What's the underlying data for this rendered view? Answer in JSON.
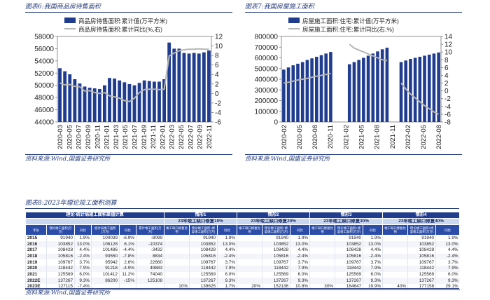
{
  "fig6": {
    "title": "图表6:我国商品房待售面积",
    "source": "资料来源:Wind,国盛证券研究所"
  },
  "fig7": {
    "title": "图表7:我国房屋施工面积",
    "source": "资料来源:Wind,国盛证券研究所"
  },
  "fig8": {
    "title": "图表8:2023年理论竣工面积测算",
    "source": "资料来源:Wind,国盛证券研究所",
    "group_main": "理论-统计局竣工面积差值计算",
    "scenarios": [
      "情形1",
      "情形2",
      "情形3",
      "情形4"
    ],
    "scenario_subs": [
      "23年竣工缺口修复10%",
      "23年竣工缺口修复20%",
      "23年竣工缺口修复30%",
      "23年竣工缺口修复40%"
    ],
    "col_headers": [
      "年份",
      "理论竣工面积(万方)",
      "同比",
      "统计局竣工面积(万方)",
      "同比",
      "累计竣工面积(万方)",
      "竣工缺口修复比例",
      "理论竣工面积+修复竣工面积(万方)",
      "同比",
      "竣工缺口修复比例",
      "理论竣工面积+修复竣工面积(万方)",
      "同比",
      "竣工缺口修复比例",
      "理论竣工面积+修复竣工面积(万方)",
      "同比",
      "竣工缺口修复比例",
      "理论竣工面积+修复竣工面积(万方)",
      "同比"
    ],
    "rows": [
      [
        "2015",
        "91940",
        "1.9%",
        "100039",
        "-6.9%",
        "-8099",
        "",
        "91940",
        "1.9%",
        "",
        "91940",
        "1.9%",
        "",
        "91940",
        "1.9%",
        "",
        "91940",
        "1.9%"
      ],
      [
        "2016",
        "103852",
        "13.0%",
        "106128",
        "6.1%",
        "-10374",
        "",
        "103852",
        "13.0%",
        "",
        "103852",
        "13.0%",
        "",
        "103852",
        "13.0%",
        "",
        "103852",
        "13.0%"
      ],
      [
        "2017",
        "108428",
        "4.4%",
        "101486",
        "-4.4%",
        "-3432",
        "",
        "108428",
        "4.4%",
        "",
        "108428",
        "4.4%",
        "",
        "108428",
        "4.4%",
        "",
        "108428",
        "4.4%"
      ],
      [
        "2018",
        "105816",
        "-2.4%",
        "93550",
        "-7.8%",
        "8834",
        "",
        "105816",
        "-2.4%",
        "",
        "105816",
        "-2.4%",
        "",
        "105816",
        "-2.4%",
        "",
        "105816",
        "-2.4%"
      ],
      [
        "2019",
        "109767",
        "3.7%",
        "95942",
        "2.6%",
        "22660",
        "",
        "109767",
        "3.7%",
        "",
        "109767",
        "3.7%",
        "",
        "109767",
        "3.7%",
        "",
        "109767",
        "3.7%"
      ],
      [
        "2020",
        "118442",
        "7.9%",
        "91218",
        "-4.9%",
        "49883",
        "",
        "118442",
        "7.9%",
        "",
        "118442",
        "7.9%",
        "",
        "118442",
        "7.9%",
        "",
        "118442",
        "7.9%"
      ],
      [
        "2021",
        "125569",
        "6.0%",
        "101412",
        "11.2%",
        "74040",
        "",
        "125569",
        "6.0%",
        "",
        "125569",
        "6.0%",
        "",
        "125569",
        "6.0%",
        "",
        "125569",
        "6.0%"
      ],
      [
        "2022E",
        "137267",
        "9.3%",
        "86200",
        "-15%",
        "125108",
        "",
        "137267",
        "9.3%",
        "",
        "137267",
        "9.3%",
        "",
        "137267",
        "9.3%",
        "",
        "137267",
        "9.3%"
      ],
      [
        "2023E",
        "127115",
        "-7.4%",
        "",
        "",
        "",
        "10%",
        "139625",
        "1.7%",
        "20%",
        "152136",
        "10.8%",
        "30%",
        "164647",
        "19.9%",
        "40%",
        "177158",
        "29.1%"
      ]
    ]
  },
  "chart_data": [
    {
      "type": "bar",
      "title": "图表6:我国商品房待售面积",
      "legend_bar": "商品房待售面积:累计值(万平方米)",
      "legend_line": "商品房待售面积:累计同比(%,右)",
      "x_ticks": [
        "2020-03",
        "2020-05",
        "2020-07",
        "2020-09",
        "2020-11",
        "2021-01",
        "2021-03",
        "2021-05",
        "2021-07",
        "2021-09",
        "2021-11",
        "2022-01",
        "2022-03",
        "2022-05",
        "2022-07",
        "2022-09",
        "2022-11"
      ],
      "y_ticks_left": [
        "44000",
        "46000",
        "48000",
        "50000",
        "52000",
        "54000",
        "56000",
        "58000"
      ],
      "y_ticks_right": [
        "-6",
        "-4",
        "-2",
        "0",
        "2",
        "4",
        "6",
        "8",
        "10",
        "12"
      ],
      "ylim_left": [
        44000,
        58000
      ],
      "ylim_right": [
        -6,
        12
      ],
      "bars": [
        52800,
        52300,
        51800,
        51000,
        50300,
        49800,
        49600,
        49500,
        49400,
        50000,
        51200,
        51100,
        50800,
        50500,
        50200,
        50000,
        50400,
        50800,
        50700,
        50600,
        50600,
        51000,
        57000,
        56000,
        56000,
        55300,
        55200,
        55300,
        55200,
        55400,
        55700
      ],
      "line": [
        2.2,
        1.8,
        1.9,
        1.5,
        1.4,
        0.5,
        0.6,
        0.2,
        0.0,
        0.2,
        -0.5,
        -0.7,
        -1.0,
        -1.5,
        -1.7,
        -1.0,
        0.2,
        0.8,
        0.9,
        0.9,
        0.8,
        0.9,
        7.9,
        8.5,
        9.0,
        9.2,
        9.3,
        9.3,
        9.4,
        9.3,
        9.3
      ]
    },
    {
      "type": "bar",
      "title": "图表7:我国房屋施工面积",
      "legend_bar": "房屋施工面积:住宅:累计值(万平方米)",
      "legend_line": "房屋施工面积:住宅:累计同比(右,%)",
      "x_ticks": [
        "2020-02",
        "2020-05",
        "2020-08",
        "2020-11",
        "2021-02",
        "2021-05",
        "2021-08",
        "2021-11",
        "2022-02",
        "2022-05",
        "2022-08"
      ],
      "y_ticks_left": [
        "0",
        "100000",
        "200000",
        "300000",
        "400000",
        "500000",
        "600000",
        "700000",
        "800000"
      ],
      "y_ticks_right": [
        "-8",
        "-6",
        "-4",
        "-2",
        "0",
        "2",
        "4",
        "6",
        "8",
        "10",
        "12",
        "14"
      ],
      "ylim_left": [
        0,
        800000
      ],
      "ylim_right": [
        -8,
        14
      ],
      "bars": [
        490000,
        510000,
        530000,
        545000,
        560000,
        580000,
        595000,
        610000,
        625000,
        640000,
        655000,
        0,
        0,
        0,
        540000,
        560000,
        580000,
        600000,
        620000,
        640000,
        660000,
        680000,
        695000,
        0,
        0,
        560000,
        575000,
        590000,
        600000,
        610000,
        620000,
        630000,
        640000,
        650000
      ],
      "line": [
        2.0,
        2.2,
        2.5,
        2.8,
        3.0,
        3.2,
        3.5,
        3.8,
        4.0,
        4.2,
        4.5,
        null,
        null,
        null,
        12.0,
        11.0,
        10.5,
        10.0,
        9.5,
        9.0,
        8.5,
        8.0,
        7.8,
        null,
        null,
        2.0,
        0.5,
        -0.8,
        -1.8,
        -2.8,
        -3.8,
        -4.6,
        -5.4,
        -6.0
      ]
    }
  ]
}
